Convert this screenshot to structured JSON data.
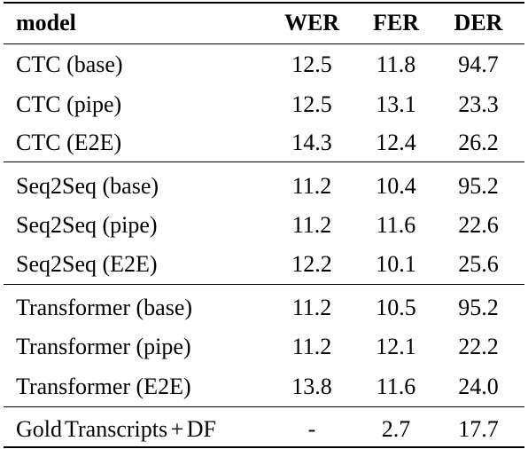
{
  "header": {
    "model": "model",
    "wer": "WER",
    "fer": "FER",
    "der": "DER"
  },
  "rows": [
    {
      "model": "CTC (base)",
      "wer": "12.5",
      "fer": "11.8",
      "der": "94.7"
    },
    {
      "model": "CTC (pipe)",
      "wer": "12.5",
      "fer": "13.1",
      "der": "23.3"
    },
    {
      "model": "CTC (E2E)",
      "wer": "14.3",
      "fer": "12.4",
      "der": "26.2"
    },
    {
      "model": "Seq2Seq (base)",
      "wer": "11.2",
      "fer": "10.4",
      "der": "95.2"
    },
    {
      "model": "Seq2Seq (pipe)",
      "wer": "11.2",
      "fer": "11.6",
      "der": "22.6"
    },
    {
      "model": "Seq2Seq (E2E)",
      "wer": "12.2",
      "fer": "10.1",
      "der": "25.6"
    },
    {
      "model": "Transformer (base)",
      "wer": "11.2",
      "fer": "10.5",
      "der": "95.2"
    },
    {
      "model": "Transformer (pipe)",
      "wer": "11.2",
      "fer": "12.1",
      "der": "22.2"
    },
    {
      "model": "Transformer (E2E)",
      "wer": "13.8",
      "fer": "11.6",
      "der": "24.0"
    },
    {
      "model": "Gold Transcripts + DF",
      "wer": "-",
      "fer": "2.7",
      "der": "17.7"
    }
  ]
}
